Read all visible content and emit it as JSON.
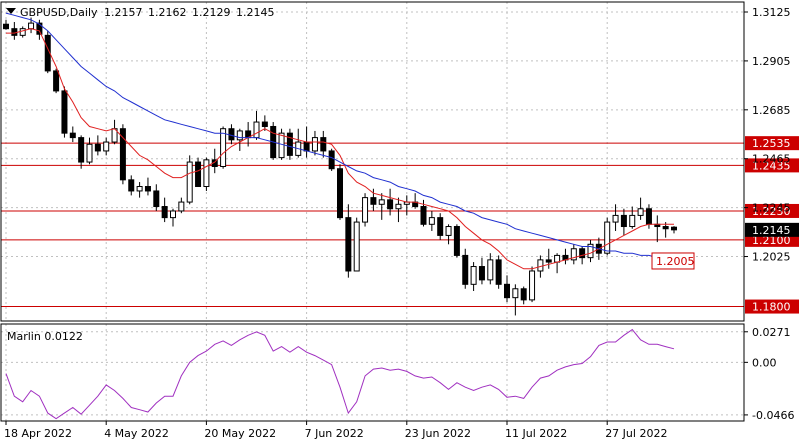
{
  "header": {
    "symbol_label": "GBPUSD,Daily",
    "ohlc": [
      "1.2157",
      "1.2162",
      "1.2129",
      "1.2145"
    ]
  },
  "colors": {
    "background": "#ffffff",
    "frame": "#000000",
    "grid": "#c0c0c0",
    "bull": "#000000",
    "bear_fill": "#000000",
    "bull_fill": "#ffffff",
    "ma_fast": "#e02020",
    "ma_slow": "#2030d0",
    "level_line": "#cc0000",
    "level_label_bg": "#cc0000",
    "level_label_text": "#ffffff",
    "current_price_bg": "#000000",
    "oscillator": "#a030c0"
  },
  "chart_data": [
    {
      "type": "candlestick",
      "title": "GBPUSD,Daily",
      "ylim": [
        1.1735,
        1.317
      ],
      "y_ticks": [
        "1.3125",
        "1.2905",
        "1.2685",
        "1.2465",
        "1.2245",
        "1.2025"
      ],
      "x_tick_labels": [
        "18 Apr 2022",
        "4 May 2022",
        "20 May 2022",
        "7 Jun 2022",
        "23 Jun 2022",
        "11 Jul 2022",
        "27 Jul 2022"
      ],
      "x_tick_bar_index": [
        0,
        12,
        24,
        36,
        48,
        60,
        72
      ],
      "grid": true,
      "candles": [
        [
          1.307,
          1.309,
          1.3045,
          1.305
        ],
        [
          1.305,
          1.308,
          1.3,
          1.302
        ],
        [
          1.302,
          1.306,
          1.301,
          1.305
        ],
        [
          1.305,
          1.31,
          1.303,
          1.3075
        ],
        [
          1.3075,
          1.309,
          1.3,
          1.3025
        ],
        [
          1.302,
          1.304,
          1.285,
          1.286
        ],
        [
          1.286,
          1.287,
          1.276,
          1.277
        ],
        [
          1.277,
          1.279,
          1.256,
          1.258
        ],
        [
          1.258,
          1.261,
          1.254,
          1.256
        ],
        [
          1.256,
          1.257,
          1.242,
          1.245
        ],
        [
          1.245,
          1.256,
          1.244,
          1.253
        ],
        [
          1.253,
          1.257,
          1.248,
          1.25
        ],
        [
          1.25,
          1.256,
          1.248,
          1.254
        ],
        [
          1.254,
          1.264,
          1.253,
          1.26
        ],
        [
          1.26,
          1.262,
          1.235,
          1.237
        ],
        [
          1.237,
          1.239,
          1.23,
          1.232
        ],
        [
          1.232,
          1.236,
          1.229,
          1.234
        ],
        [
          1.234,
          1.238,
          1.23,
          1.232
        ],
        [
          1.232,
          1.235,
          1.223,
          1.225
        ],
        [
          1.225,
          1.229,
          1.218,
          1.22
        ],
        [
          1.22,
          1.224,
          1.216,
          1.223
        ],
        [
          1.223,
          1.229,
          1.222,
          1.227
        ],
        [
          1.227,
          1.248,
          1.226,
          1.245
        ],
        [
          1.245,
          1.247,
          1.234,
          1.234
        ],
        [
          1.234,
          1.247,
          1.232,
          1.246
        ],
        [
          1.246,
          1.251,
          1.24,
          1.243
        ],
        [
          1.243,
          1.261,
          1.242,
          1.26
        ],
        [
          1.26,
          1.262,
          1.253,
          1.255
        ],
        [
          1.255,
          1.26,
          1.25,
          1.259
        ],
        [
          1.259,
          1.263,
          1.252,
          1.256
        ],
        [
          1.256,
          1.268,
          1.255,
          1.263
        ],
        [
          1.263,
          1.266,
          1.259,
          1.261
        ],
        [
          1.261,
          1.263,
          1.246,
          1.247
        ],
        [
          1.247,
          1.26,
          1.246,
          1.258
        ],
        [
          1.258,
          1.26,
          1.246,
          1.248
        ],
        [
          1.248,
          1.26,
          1.247,
          1.254
        ],
        [
          1.254,
          1.261,
          1.247,
          1.25
        ],
        [
          1.25,
          1.259,
          1.248,
          1.256
        ],
        [
          1.256,
          1.259,
          1.247,
          1.25
        ],
        [
          1.25,
          1.251,
          1.241,
          1.242
        ],
        [
          1.242,
          1.244,
          1.219,
          1.22
        ],
        [
          1.22,
          1.226,
          1.193,
          1.196
        ],
        [
          1.196,
          1.22,
          1.196,
          1.218
        ],
        [
          1.218,
          1.231,
          1.216,
          1.229
        ],
        [
          1.229,
          1.233,
          1.223,
          1.226
        ],
        [
          1.226,
          1.231,
          1.219,
          1.228
        ],
        [
          1.228,
          1.233,
          1.221,
          1.224
        ],
        [
          1.224,
          1.229,
          1.218,
          1.226
        ],
        [
          1.226,
          1.23,
          1.221,
          1.227
        ],
        [
          1.227,
          1.231,
          1.224,
          1.225
        ],
        [
          1.225,
          1.228,
          1.216,
          1.217
        ],
        [
          1.217,
          1.223,
          1.214,
          1.22
        ],
        [
          1.22,
          1.222,
          1.21,
          1.212
        ],
        [
          1.212,
          1.217,
          1.208,
          1.216
        ],
        [
          1.216,
          1.217,
          1.202,
          1.203
        ],
        [
          1.203,
          1.206,
          1.188,
          1.19
        ],
        [
          1.19,
          1.2,
          1.187,
          1.198
        ],
        [
          1.198,
          1.202,
          1.19,
          1.192
        ],
        [
          1.192,
          1.204,
          1.19,
          1.201
        ],
        [
          1.201,
          1.203,
          1.188,
          1.19
        ],
        [
          1.19,
          1.194,
          1.182,
          1.184
        ],
        [
          1.184,
          1.19,
          1.176,
          1.188
        ],
        [
          1.188,
          1.189,
          1.181,
          1.183
        ],
        [
          1.183,
          1.198,
          1.182,
          1.196
        ],
        [
          1.196,
          1.203,
          1.193,
          1.201
        ],
        [
          1.201,
          1.206,
          1.197,
          1.2
        ],
        [
          1.2,
          1.204,
          1.195,
          1.203
        ],
        [
          1.203,
          1.206,
          1.199,
          1.201
        ],
        [
          1.201,
          1.208,
          1.199,
          1.206
        ],
        [
          1.206,
          1.207,
          1.199,
          1.202
        ],
        [
          1.202,
          1.21,
          1.2,
          1.208
        ],
        [
          1.208,
          1.211,
          1.201,
          1.204
        ],
        [
          1.204,
          1.22,
          1.203,
          1.218
        ],
        [
          1.218,
          1.226,
          1.214,
          1.221
        ],
        [
          1.221,
          1.224,
          1.212,
          1.216
        ],
        [
          1.216,
          1.225,
          1.215,
          1.221
        ],
        [
          1.221,
          1.229,
          1.219,
          1.224
        ],
        [
          1.224,
          1.226,
          1.215,
          1.217
        ],
        [
          1.217,
          1.221,
          1.209,
          1.216
        ],
        [
          1.216,
          1.218,
          1.211,
          1.215
        ],
        [
          1.2157,
          1.2162,
          1.2129,
          1.2145
        ]
      ],
      "series": [
        {
          "name": "",
          "role": "fast_ma",
          "values": [
            1.303,
            1.303,
            1.304,
            1.305,
            1.304,
            1.296,
            1.288,
            1.278,
            1.272,
            1.265,
            1.261,
            1.26,
            1.259,
            1.26,
            1.256,
            1.252,
            1.248,
            1.246,
            1.243,
            1.24,
            1.238,
            1.238,
            1.24,
            1.241,
            1.243,
            1.245,
            1.249,
            1.252,
            1.254,
            1.256,
            1.258,
            1.26,
            1.258,
            1.257,
            1.256,
            1.255,
            1.254,
            1.254,
            1.254,
            1.253,
            1.248,
            1.24,
            1.236,
            1.234,
            1.231,
            1.23,
            1.229,
            1.228,
            1.227,
            1.227,
            1.226,
            1.225,
            1.224,
            1.223,
            1.22,
            1.216,
            1.213,
            1.21,
            1.208,
            1.205,
            1.201,
            1.199,
            1.197,
            1.197,
            1.198,
            1.199,
            1.2,
            1.201,
            1.202,
            1.203,
            1.204,
            1.206,
            1.208,
            1.21,
            1.212,
            1.214,
            1.216,
            1.217,
            1.217,
            1.217,
            1.217
          ]
        },
        {
          "name": "",
          "role": "slow_ma",
          "values": [
            1.312,
            1.311,
            1.31,
            1.309,
            1.307,
            1.304,
            1.3,
            1.296,
            1.292,
            1.288,
            1.285,
            1.282,
            1.279,
            1.277,
            1.274,
            1.272,
            1.27,
            1.268,
            1.266,
            1.264,
            1.263,
            1.262,
            1.261,
            1.26,
            1.259,
            1.258,
            1.258,
            1.257,
            1.256,
            1.256,
            1.256,
            1.255,
            1.254,
            1.253,
            1.252,
            1.251,
            1.25,
            1.249,
            1.248,
            1.247,
            1.245,
            1.243,
            1.241,
            1.24,
            1.238,
            1.237,
            1.236,
            1.234,
            1.233,
            1.232,
            1.23,
            1.229,
            1.227,
            1.226,
            1.225,
            1.223,
            1.222,
            1.22,
            1.219,
            1.218,
            1.217,
            1.215,
            1.214,
            1.213,
            1.212,
            1.211,
            1.21,
            1.209,
            1.208,
            1.207,
            1.207,
            1.206,
            1.205,
            1.205,
            1.204,
            1.204,
            1.203,
            1.203,
            1.202,
            1.201,
            1.2005
          ]
        }
      ],
      "levels": [
        {
          "label": "1.2535",
          "value": 1.2535
        },
        {
          "label": "1.2435",
          "value": 1.2435
        },
        {
          "label": "1.2230",
          "value": 1.223
        },
        {
          "label": "1.2100",
          "value": 1.21
        },
        {
          "label": "1.1800",
          "value": 1.18
        }
      ],
      "price_tags": [
        {
          "label": "1.2145",
          "value": 1.2145,
          "style": "current"
        },
        {
          "label": "1.2005",
          "value": 1.2005,
          "style": "ma_callout"
        }
      ]
    },
    {
      "type": "line",
      "title": "Marlin 0.0122",
      "ylim": [
        -0.052,
        0.034
      ],
      "y_ticks": [
        "0.0271",
        "0.00",
        "-0.0466"
      ],
      "series": [
        {
          "name": "",
          "values": [
            -0.01,
            -0.03,
            -0.035,
            -0.025,
            -0.03,
            -0.045,
            -0.05,
            -0.045,
            -0.04,
            -0.046,
            -0.038,
            -0.03,
            -0.02,
            -0.025,
            -0.032,
            -0.04,
            -0.042,
            -0.044,
            -0.036,
            -0.03,
            -0.03,
            -0.012,
            0.0,
            0.006,
            0.01,
            0.016,
            0.019,
            0.015,
            0.02,
            0.024,
            0.027,
            0.024,
            0.01,
            0.014,
            0.009,
            0.014,
            0.009,
            0.006,
            0.002,
            -0.002,
            -0.022,
            -0.045,
            -0.035,
            -0.012,
            -0.006,
            -0.005,
            -0.007,
            -0.006,
            -0.008,
            -0.012,
            -0.014,
            -0.013,
            -0.018,
            -0.024,
            -0.018,
            -0.022,
            -0.025,
            -0.022,
            -0.02,
            -0.024,
            -0.031,
            -0.03,
            -0.032,
            -0.022,
            -0.014,
            -0.012,
            -0.007,
            -0.004,
            -0.002,
            -0.001,
            0.005,
            0.015,
            0.018,
            0.018,
            0.024,
            0.029,
            0.02,
            0.016,
            0.016,
            0.014,
            0.012
          ]
        }
      ]
    }
  ]
}
